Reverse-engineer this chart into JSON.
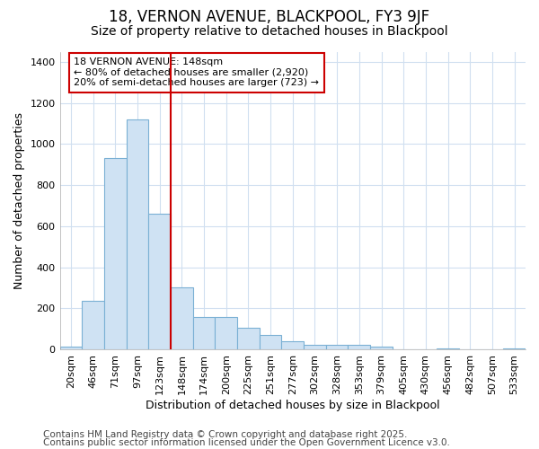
{
  "title1": "18, VERNON AVENUE, BLACKPOOL, FY3 9JF",
  "title2": "Size of property relative to detached houses in Blackpool",
  "xlabel": "Distribution of detached houses by size in Blackpool",
  "ylabel": "Number of detached properties",
  "categories": [
    "20sqm",
    "46sqm",
    "71sqm",
    "97sqm",
    "123sqm",
    "148sqm",
    "174sqm",
    "200sqm",
    "225sqm",
    "251sqm",
    "277sqm",
    "302sqm",
    "328sqm",
    "353sqm",
    "379sqm",
    "405sqm",
    "430sqm",
    "456sqm",
    "482sqm",
    "507sqm",
    "533sqm"
  ],
  "values": [
    15,
    235,
    930,
    1120,
    660,
    300,
    158,
    158,
    105,
    70,
    40,
    22,
    20,
    20,
    15,
    0,
    0,
    5,
    0,
    0,
    5
  ],
  "bar_color": "#cfe2f3",
  "bar_edge_color": "#7ab0d4",
  "red_line_index": 5,
  "red_line_color": "#cc0000",
  "ylim": [
    0,
    1450
  ],
  "yticks": [
    0,
    200,
    400,
    600,
    800,
    1000,
    1200,
    1400
  ],
  "annotation_title": "18 VERNON AVENUE: 148sqm",
  "annotation_line1": "← 80% of detached houses are smaller (2,920)",
  "annotation_line2": "20% of semi-detached houses are larger (723) →",
  "annotation_box_color": "#cc0000",
  "footnote1": "Contains HM Land Registry data © Crown copyright and database right 2025.",
  "footnote2": "Contains public sector information licensed under the Open Government Licence v3.0.",
  "bg_color": "#ffffff",
  "plot_bg_color": "#ffffff",
  "grid_color": "#d0dff0",
  "title_fontsize": 12,
  "subtitle_fontsize": 10,
  "axis_label_fontsize": 9,
  "tick_fontsize": 8,
  "annotation_fontsize": 8,
  "footnote_fontsize": 7.5
}
